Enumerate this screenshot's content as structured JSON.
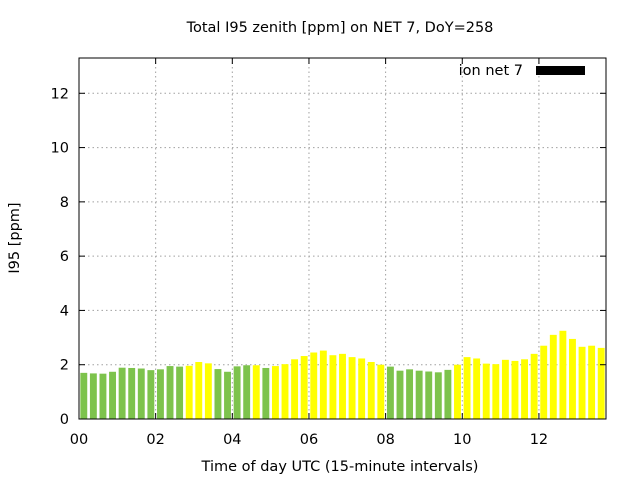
{
  "chart_data": {
    "type": "bar",
    "title": "Total I95 zenith [ppm] on NET 7, DoY=258",
    "xlabel": "Time of day UTC (15-minute intervals)",
    "ylabel": "I95 [ppm]",
    "xlim": [
      0,
      13.75
    ],
    "ylim": [
      0,
      13.3
    ],
    "xticks": [
      0,
      2,
      4,
      6,
      8,
      10,
      12
    ],
    "xtick_labels": [
      "00",
      "02",
      "04",
      "06",
      "08",
      "10",
      "12"
    ],
    "yticks": [
      0,
      2,
      4,
      6,
      8,
      10,
      12
    ],
    "ytick_labels": [
      "0",
      "2",
      "4",
      "6",
      "8",
      "10",
      "12"
    ],
    "grid": true,
    "legend": {
      "label": "ion net 7",
      "position": "top-right",
      "color": "#000000"
    },
    "colors": {
      "green": "#7dc34c",
      "yellow": "#ffff00"
    },
    "x_interval_hours": 0.25,
    "values": [
      1.7,
      1.68,
      1.67,
      1.74,
      1.89,
      1.88,
      1.86,
      1.8,
      1.83,
      1.95,
      1.93,
      1.96,
      2.1,
      2.05,
      1.84,
      1.74,
      1.94,
      1.98,
      1.98,
      1.88,
      1.95,
      2.02,
      2.2,
      2.32,
      2.45,
      2.52,
      2.35,
      2.4,
      2.28,
      2.23,
      2.1,
      2.0,
      1.93,
      1.78,
      1.83,
      1.78,
      1.75,
      1.72,
      1.81,
      2.0,
      2.28,
      2.23,
      2.04,
      2.02,
      2.18,
      2.14,
      2.2,
      2.4,
      2.7,
      3.1,
      3.25,
      2.95,
      2.66,
      2.7,
      2.62,
      2.48
    ],
    "bar_colors": [
      "green",
      "green",
      "green",
      "green",
      "green",
      "green",
      "green",
      "green",
      "green",
      "green",
      "green",
      "yellow",
      "yellow",
      "yellow",
      "green",
      "green",
      "green",
      "green",
      "yellow",
      "green",
      "yellow",
      "yellow",
      "yellow",
      "yellow",
      "yellow",
      "yellow",
      "yellow",
      "yellow",
      "yellow",
      "yellow",
      "yellow",
      "yellow",
      "green",
      "green",
      "green",
      "green",
      "green",
      "green",
      "green",
      "yellow",
      "yellow",
      "yellow",
      "yellow",
      "yellow",
      "yellow",
      "yellow",
      "yellow",
      "yellow",
      "yellow",
      "yellow",
      "yellow",
      "yellow",
      "yellow",
      "yellow",
      "yellow",
      "yellow"
    ]
  }
}
